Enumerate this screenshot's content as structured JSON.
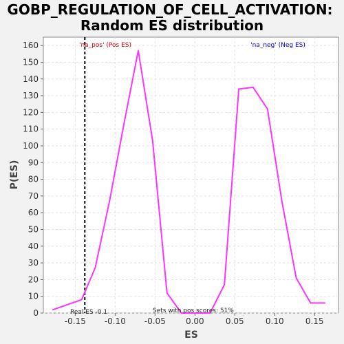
{
  "chart_data": {
    "type": "line",
    "title_line1": "GOBP_REGULATION_OF_CELL_ACTIVATION:",
    "title_line2": "Random ES distribution",
    "xlabel": "ES",
    "ylabel": "P(ES)",
    "xlim": [
      -0.19,
      0.18
    ],
    "ylim": [
      0,
      165
    ],
    "x_ticks": [
      -0.15,
      -0.1,
      -0.05,
      0.0,
      0.05,
      0.1,
      0.15
    ],
    "x_tick_labels": [
      "-0.15",
      "-0.10",
      "-0.05",
      "0.00",
      "0.05",
      "0.10",
      "0.15"
    ],
    "y_ticks": [
      0,
      10,
      20,
      30,
      40,
      50,
      60,
      70,
      80,
      90,
      100,
      110,
      120,
      130,
      140,
      150,
      160
    ],
    "y_tick_labels": [
      "0",
      "10",
      "20",
      "30",
      "40",
      "50",
      "60",
      "70",
      "80",
      "90",
      "100",
      "110",
      "120",
      "130",
      "140",
      "150",
      "160"
    ],
    "grid": true,
    "series": [
      {
        "color": "#ff33ff",
        "x": [
          -0.178,
          -0.142,
          -0.125,
          -0.107,
          -0.089,
          -0.071,
          -0.053,
          -0.035,
          -0.017,
          0.001,
          0.019,
          0.037,
          0.055,
          0.073,
          0.091,
          0.109,
          0.127,
          0.145,
          0.163
        ],
        "y": [
          2,
          8,
          27,
          67,
          113,
          157,
          103,
          12,
          0,
          0,
          0,
          17,
          134,
          135,
          122,
          67,
          21,
          6,
          6
        ]
      }
    ],
    "real_es": {
      "value": -0.138,
      "label": "Real ES -0.1",
      "color": "#000000"
    },
    "annotations": {
      "pos_label": "'na_pos' (Pos ES)",
      "pos_color": "#dd0000",
      "neg_label": "'na_neg' (Neg ES)",
      "neg_color": "#0000dd",
      "sets_label": "Sets with pos scores: 51%"
    }
  }
}
